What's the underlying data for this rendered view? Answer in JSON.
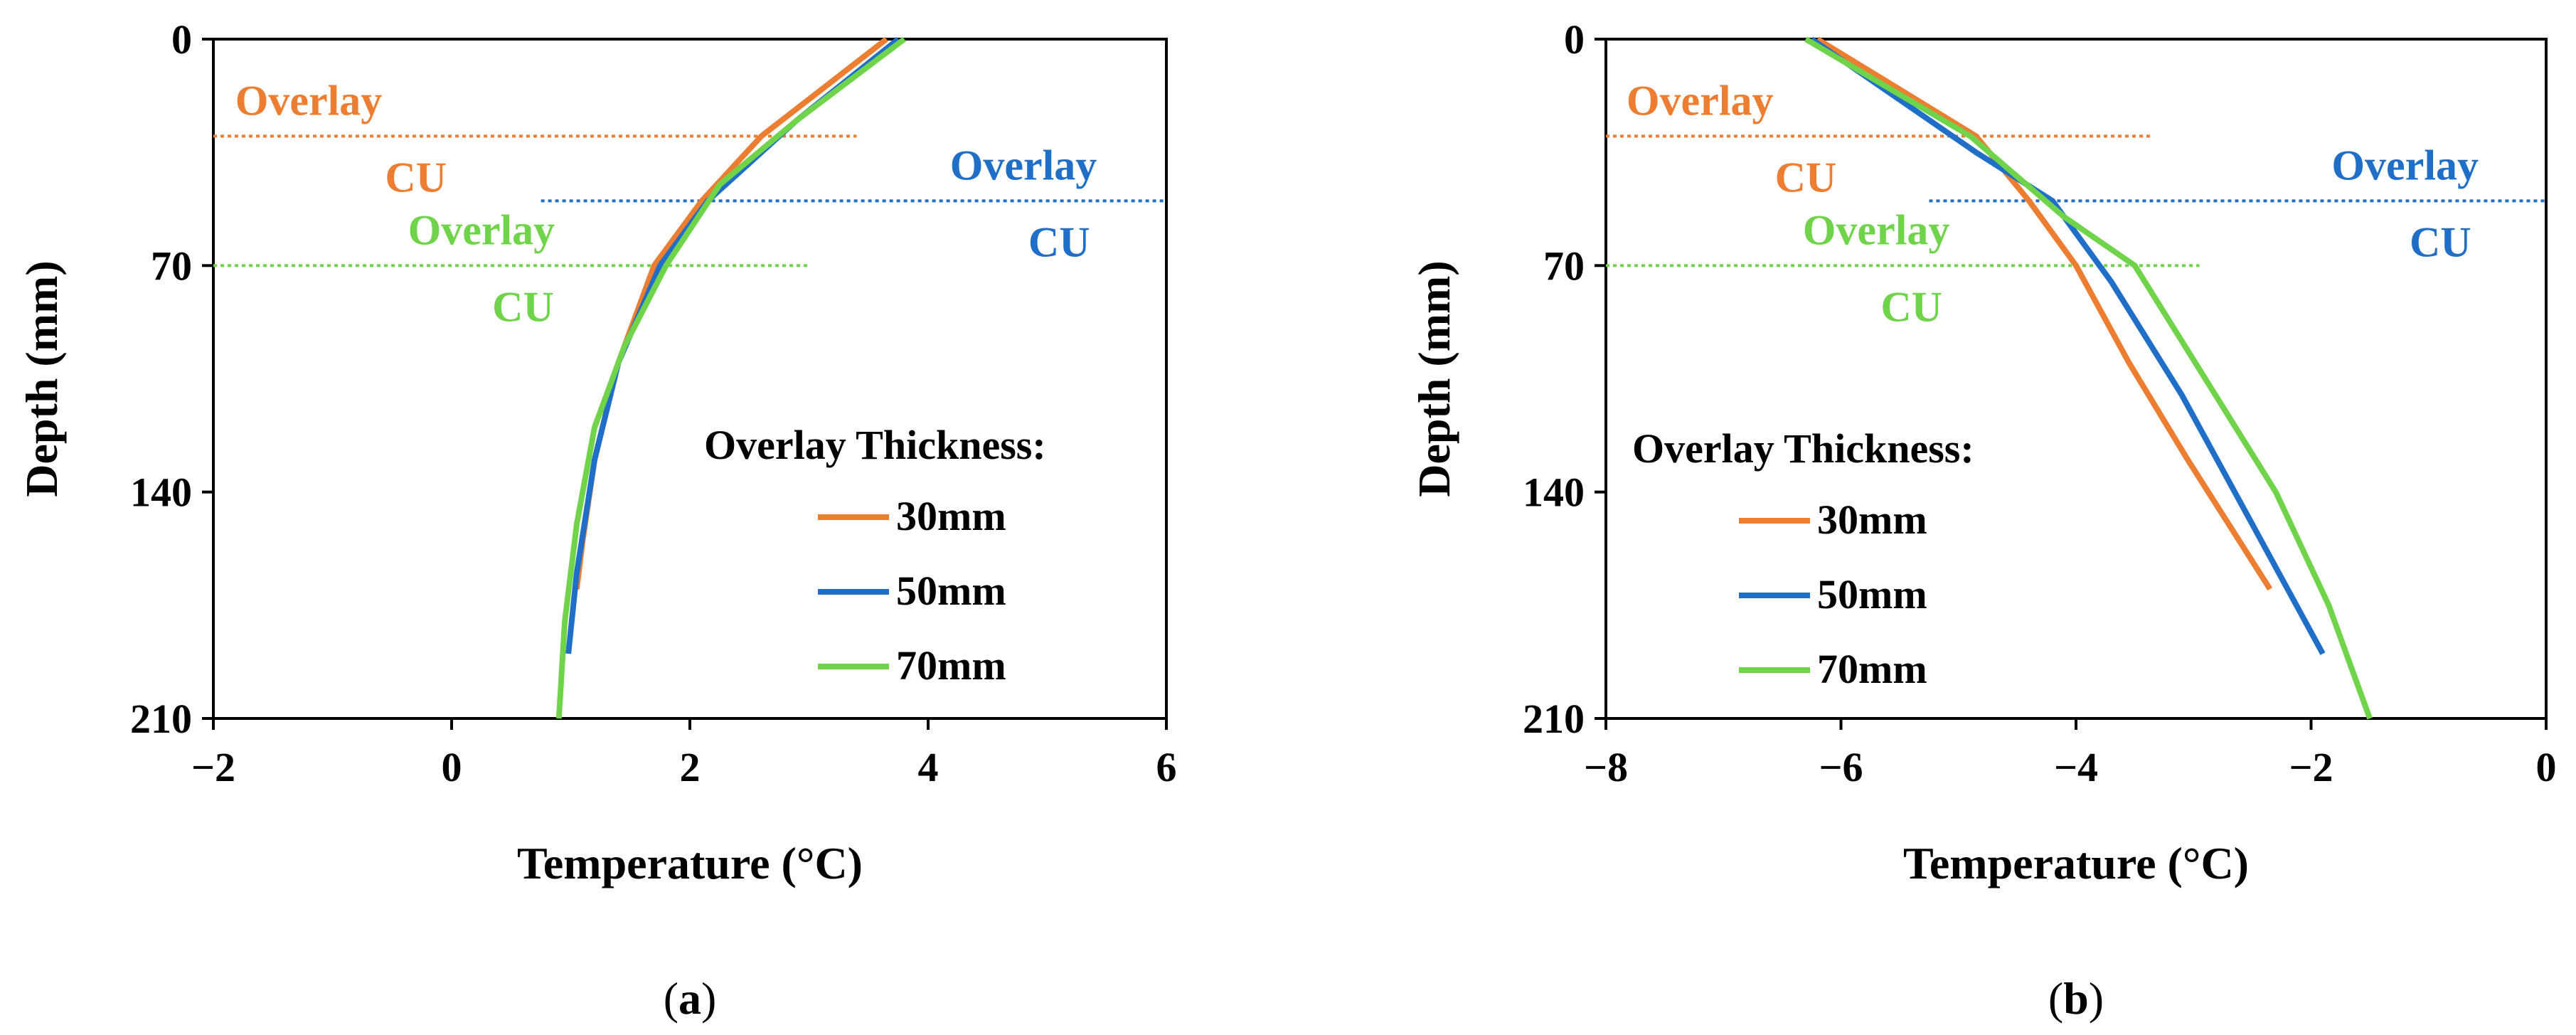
{
  "colors": {
    "30mm": "#ED7D31",
    "50mm": "#1F6FC9",
    "70mm": "#70D44B"
  },
  "chart_data": [
    {
      "type": "line",
      "panel_label": "a",
      "xlabel": "Temperature (°C)",
      "ylabel": "Depth (mm)",
      "xlim": [
        -2,
        6
      ],
      "ylim": [
        0,
        210
      ],
      "y_inverted": true,
      "xticks": [
        -2,
        0,
        2,
        4,
        6
      ],
      "xtick_labels": [
        "−2",
        "0",
        "2",
        "4",
        "6"
      ],
      "yticks": [
        0,
        70,
        140,
        210
      ],
      "grid": false,
      "legend_title": "Overlay Thickness:",
      "legend_position": "bottom-right",
      "series": [
        {
          "name": "30mm",
          "color_key": "30mm",
          "x": [
            3.65,
            2.6,
            2.1,
            1.7,
            1.4,
            1.2,
            1.1,
            1.05
          ],
          "y": [
            0,
            30,
            50,
            70,
            100,
            130,
            155,
            170
          ]
        },
        {
          "name": "50mm",
          "color_key": "50mm",
          "x": [
            3.75,
            2.9,
            2.15,
            1.75,
            1.4,
            1.2,
            1.05,
            0.98
          ],
          "y": [
            0,
            25,
            50,
            70,
            100,
            130,
            165,
            190
          ]
        },
        {
          "name": "70mm",
          "color_key": "70mm",
          "x": [
            3.8,
            2.9,
            2.25,
            1.8,
            1.45,
            1.2,
            1.05,
            0.95,
            0.9
          ],
          "y": [
            0,
            25,
            45,
            70,
            95,
            120,
            150,
            180,
            210
          ]
        }
      ],
      "layers": [
        {
          "depth": 30,
          "color_key": "30mm",
          "x_end": 3.4,
          "top_label": "Overlay",
          "bottom_label": "CU",
          "top_label_x": -1.2,
          "bottom_label_x": -0.3
        },
        {
          "depth": 50,
          "color_key": "50mm",
          "x_start": 0.75,
          "top_label": "Overlay",
          "bottom_label": "CU",
          "top_label_x": 4.8,
          "bottom_label_x": 5.1
        },
        {
          "depth": 70,
          "color_key": "70mm",
          "x_end": 3.0,
          "top_label": "Overlay",
          "bottom_label": "CU",
          "top_label_x": 0.25,
          "bottom_label_x": 0.6
        }
      ]
    },
    {
      "type": "line",
      "panel_label": "b",
      "xlabel": "Temperature (°C)",
      "ylabel": "Depth (mm)",
      "xlim": [
        -8,
        0
      ],
      "ylim": [
        0,
        210
      ],
      "y_inverted": true,
      "xticks": [
        -8,
        -6,
        -4,
        -2,
        0
      ],
      "xtick_labels": [
        "−8",
        "−6",
        "−4",
        "−2",
        "0"
      ],
      "yticks": [
        0,
        70,
        140,
        210
      ],
      "grid": false,
      "legend_title": "Overlay Thickness:",
      "legend_position": "bottom-left",
      "series": [
        {
          "name": "30mm",
          "color_key": "30mm",
          "x": [
            -6.2,
            -4.85,
            -4.4,
            -4.0,
            -3.55,
            -3.05,
            -2.35
          ],
          "y": [
            0,
            30,
            50,
            70,
            100,
            130,
            170
          ]
        },
        {
          "name": "50mm",
          "color_key": "50mm",
          "x": [
            -6.25,
            -4.85,
            -4.2,
            -3.7,
            -3.1,
            -2.5,
            -1.9
          ],
          "y": [
            0,
            35,
            50,
            75,
            110,
            150,
            190
          ]
        },
        {
          "name": "70mm",
          "color_key": "70mm",
          "x": [
            -6.3,
            -4.9,
            -4.1,
            -3.5,
            -2.9,
            -2.3,
            -1.85,
            -1.5
          ],
          "y": [
            0,
            30,
            55,
            70,
            105,
            140,
            175,
            210
          ]
        }
      ],
      "layers": [
        {
          "depth": 30,
          "color_key": "30mm",
          "x_end": -3.35,
          "top_label": "Overlay",
          "bottom_label": "CU",
          "top_label_x": -7.2,
          "bottom_label_x": -6.3
        },
        {
          "depth": 50,
          "color_key": "50mm",
          "x_start": -5.25,
          "top_label": "Overlay",
          "bottom_label": "CU",
          "top_label_x": -1.2,
          "bottom_label_x": -0.9
        },
        {
          "depth": 70,
          "color_key": "70mm",
          "x_end": -2.95,
          "top_label": "Overlay",
          "bottom_label": "CU",
          "top_label_x": -5.7,
          "bottom_label_x": -5.4
        }
      ]
    }
  ]
}
